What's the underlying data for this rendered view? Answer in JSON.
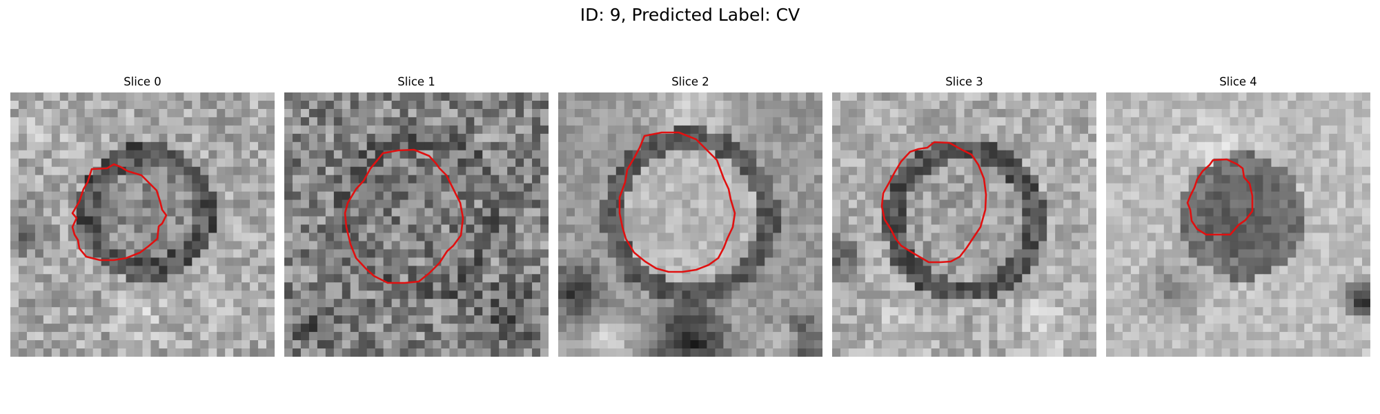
{
  "figure": {
    "title": "ID: 9, Predicted Label: CV",
    "contour_color": "#e01010"
  },
  "panels": [
    {
      "title": "Slice 0"
    },
    {
      "title": "Slice 1"
    },
    {
      "title": "Slice 2"
    },
    {
      "title": "Slice 3"
    },
    {
      "title": "Slice 4"
    }
  ]
}
